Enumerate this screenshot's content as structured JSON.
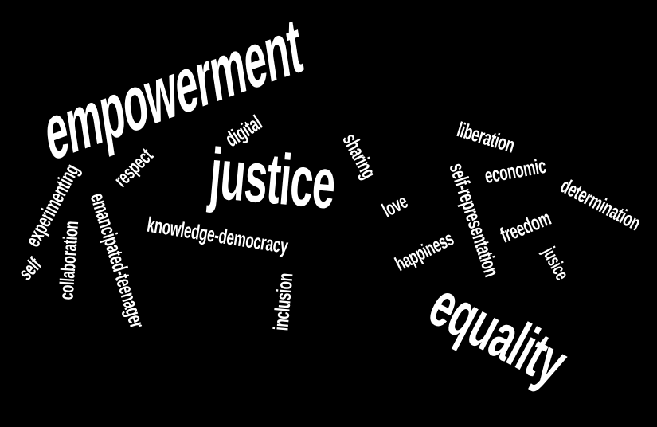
{
  "background": "#000000",
  "word_color": "#ffffff",
  "words": {
    "empowerment": "empowerment",
    "justice": "justice",
    "equality": "equality",
    "digital": "digital",
    "sharing": "sharing",
    "respect": "respect",
    "experimenting": "experimenting",
    "emancipated_teenager": "emancipated-teenager",
    "collaboration": "collaboration",
    "self": "self",
    "knowledge_democracy": "knowledge-democracy",
    "inclusion": "inclusion",
    "love": "love",
    "liberation": "liberation",
    "self_representation": "self-representation",
    "economic": "economic",
    "determination": "determination",
    "freedom": "freedom",
    "happiness": "happiness",
    "jusice": "jusice"
  }
}
